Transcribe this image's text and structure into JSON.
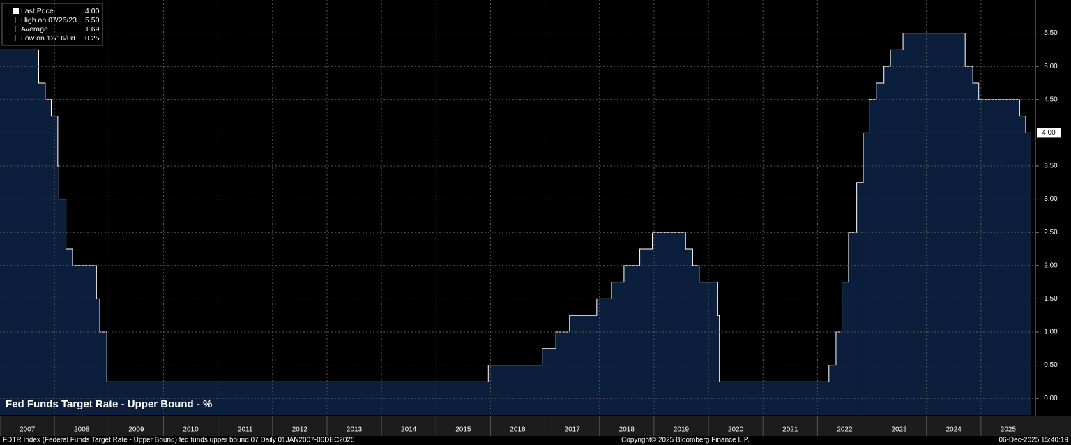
{
  "chart_data": {
    "type": "step-area",
    "title": "Fed Funds Target Rate - Upper Bound - %",
    "legend": [
      {
        "label": "Last Price",
        "value": "4.00"
      },
      {
        "label": "High on 07/26/23",
        "value": "5.50"
      },
      {
        "label": "Average",
        "value": "1.69"
      },
      {
        "label": "Low on 12/16/08",
        "value": "0.25"
      }
    ],
    "x": [
      2007.0,
      2007.71,
      2007.83,
      2007.94,
      2008.06,
      2008.08,
      2008.21,
      2008.33,
      2008.77,
      2008.83,
      2008.96,
      2015.96,
      2016.95,
      2017.2,
      2017.45,
      2017.95,
      2018.22,
      2018.45,
      2018.74,
      2018.97,
      2019.58,
      2019.71,
      2019.83,
      2020.17,
      2020.2,
      2022.21,
      2022.34,
      2022.45,
      2022.57,
      2022.72,
      2022.84,
      2022.95,
      2023.08,
      2023.22,
      2023.34,
      2023.57,
      2024.71,
      2024.85,
      2024.96,
      2025.71,
      2025.82,
      2025.93
    ],
    "values": [
      5.25,
      4.75,
      4.5,
      4.25,
      3.5,
      3.0,
      2.25,
      2.0,
      1.5,
      1.0,
      0.25,
      0.5,
      0.75,
      1.0,
      1.25,
      1.5,
      1.75,
      2.0,
      2.25,
      2.5,
      2.25,
      2.0,
      1.75,
      1.25,
      0.25,
      0.5,
      1.0,
      1.75,
      2.5,
      3.25,
      4.0,
      4.5,
      4.75,
      5.0,
      5.25,
      5.5,
      5.0,
      4.75,
      4.5,
      4.25,
      4.0,
      4.0
    ],
    "color": "#0b1f3d",
    "line_color": "#ffffff",
    "xlim": [
      2007,
      2026
    ],
    "xticks": [
      2007,
      2008,
      2009,
      2010,
      2011,
      2012,
      2013,
      2014,
      2015,
      2016,
      2017,
      2018,
      2019,
      2020,
      2021,
      2022,
      2023,
      2024,
      2025
    ],
    "ylim": [
      -0.25,
      6.0
    ],
    "yticks": [
      {
        "value": 0,
        "label": "0.00"
      },
      {
        "value": 0.5,
        "label": "0.50"
      },
      {
        "value": 1,
        "label": "1.00"
      },
      {
        "value": 1.5,
        "label": "1.50"
      },
      {
        "value": 2,
        "label": "2.00"
      },
      {
        "value": 2.5,
        "label": "2.50"
      },
      {
        "value": 3,
        "label": "3.00"
      },
      {
        "value": 3.5,
        "label": "3.50"
      },
      {
        "value": 4,
        "label": "4.00"
      },
      {
        "value": 4.5,
        "label": "4.50"
      },
      {
        "value": 5,
        "label": "5.00"
      },
      {
        "value": 5.5,
        "label": "5.50"
      }
    ],
    "grid": true,
    "footer_left": "FDTR Index (Federal Funds Target Rate - Upper Bound) fed funds upper bound 07 Daily 01JAN2007-06DEC2025",
    "footer_center": "Copyright© 2025 Bloomberg Finance L.P.",
    "footer_right": "06-Dec-2025 15:40:19"
  }
}
